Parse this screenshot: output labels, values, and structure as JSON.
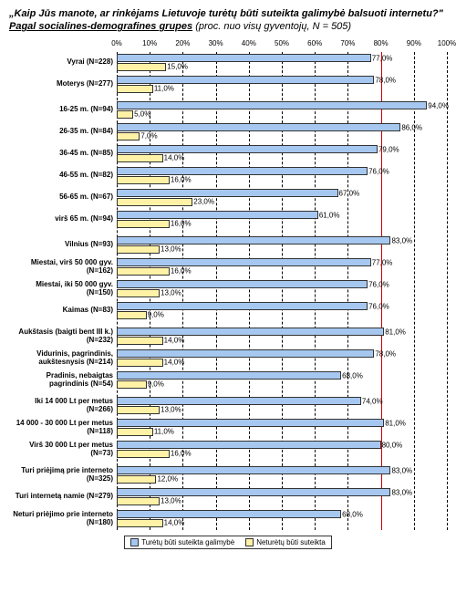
{
  "title_question": "„Kaip Jūs manote, ar rinkėjams Lietuvoje turėtų būti suteikta galimybė balsuoti internetu?\"",
  "title_sub": "Pagal socialines-demografines grupes",
  "title_note": "(proc. nuo visų gyventojų, N = 505)",
  "chart": {
    "type": "bar",
    "xlim": [
      0,
      100
    ],
    "xtick_step": 10,
    "xticks": [
      "0%",
      "10%",
      "20%",
      "30%",
      "40%",
      "50%",
      "60%",
      "70%",
      "80%",
      "90%",
      "100%"
    ],
    "reference_line": 80,
    "series_colors": {
      "should": "#a6c8f0",
      "should_not": "#fff2a6"
    },
    "bar_border_color": "#333333",
    "grid_color": "#000000",
    "ref_line_color": "#cc0000",
    "label_fontsize": 8,
    "value_fontsize": 8,
    "legend": {
      "should": "Turėtų būti suteikta galimybė",
      "should_not": "Neturėtų būti suteikta"
    },
    "groups": [
      [
        {
          "label": "Vyrai (N=228)",
          "should": 77.0,
          "should_not": 15.0
        },
        {
          "label": "Moterys (N=277)",
          "should": 78.0,
          "should_not": 11.0
        }
      ],
      [
        {
          "label": "16-25 m. (N=94)",
          "should": 94.0,
          "should_not": 5.0
        },
        {
          "label": "26-35 m. (N=84)",
          "should": 86.0,
          "should_not": 7.0
        },
        {
          "label": "36-45 m. (N=85)",
          "should": 79.0,
          "should_not": 14.0
        },
        {
          "label": "46-55 m. (N=82)",
          "should": 76.0,
          "should_not": 16.0
        },
        {
          "label": "56-65 m. (N=67)",
          "should": 67.0,
          "should_not": 23.0
        },
        {
          "label": "virš 65 m. (N=94)",
          "should": 61.0,
          "should_not": 16.0
        }
      ],
      [
        {
          "label": "Vilnius (N=93)",
          "should": 83.0,
          "should_not": 13.0
        },
        {
          "label": "Miestai, virš 50 000 gyv. (N=162)",
          "should": 77.0,
          "should_not": 16.0
        },
        {
          "label": "Miestai, iki 50 000 gyv. (N=150)",
          "should": 76.0,
          "should_not": 13.0
        },
        {
          "label": "Kaimas (N=83)",
          "should": 76.0,
          "should_not": 9.0
        }
      ],
      [
        {
          "label": "Aukštasis (baigti bent III k.) (N=232)",
          "should": 81.0,
          "should_not": 14.0
        },
        {
          "label": "Vidurinis, pagrindinis, aukštesnysis (N=214)",
          "should": 78.0,
          "should_not": 14.0
        },
        {
          "label": "Pradinis, nebaigtas pagrindinis (N=54)",
          "should": 68.0,
          "should_not": 9.0
        }
      ],
      [
        {
          "label": "Iki 14 000 Lt per metus (N=266)",
          "should": 74.0,
          "should_not": 13.0
        },
        {
          "label": "14 000 - 30 000 Lt per metus (N=118)",
          "should": 81.0,
          "should_not": 11.0
        },
        {
          "label": "Virš 30 000 Lt per metus (N=73)",
          "should": 80.0,
          "should_not": 16.0
        }
      ],
      [
        {
          "label": "Turi priėjimą prie interneto (N=325)",
          "should": 83.0,
          "should_not": 12.0
        },
        {
          "label": "Turi internetą namie (N=279)",
          "should": 83.0,
          "should_not": 13.0
        },
        {
          "label": "Neturi priėjimo prie interneto (N=180)",
          "should": 68.0,
          "should_not": 14.0
        }
      ]
    ]
  }
}
